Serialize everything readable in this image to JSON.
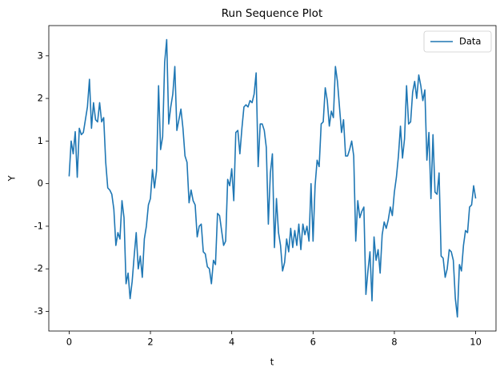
{
  "chart_data": {
    "type": "line",
    "title": "Run Sequence Plot",
    "x_label": "t",
    "y_label": "Y",
    "x": [
      0,
      0.05,
      0.1,
      0.15,
      0.2,
      0.25,
      0.3,
      0.35,
      0.4,
      0.45,
      0.5,
      0.55,
      0.6,
      0.65,
      0.7,
      0.75,
      0.8,
      0.85,
      0.9,
      0.95,
      1,
      1.05,
      1.1,
      1.15,
      1.2,
      1.25,
      1.3,
      1.35,
      1.4,
      1.45,
      1.5,
      1.55,
      1.6,
      1.65,
      1.7,
      1.75,
      1.8,
      1.85,
      1.9,
      1.95,
      2,
      2.05,
      2.1,
      2.15,
      2.2,
      2.25,
      2.3,
      2.35,
      2.4,
      2.45,
      2.5,
      2.55,
      2.6,
      2.65,
      2.7,
      2.75,
      2.8,
      2.85,
      2.9,
      2.95,
      3,
      3.05,
      3.1,
      3.15,
      3.2,
      3.25,
      3.3,
      3.35,
      3.4,
      3.45,
      3.5,
      3.55,
      3.6,
      3.65,
      3.7,
      3.75,
      3.8,
      3.85,
      3.9,
      3.95,
      4,
      4.05,
      4.1,
      4.15,
      4.2,
      4.25,
      4.3,
      4.35,
      4.4,
      4.45,
      4.5,
      4.55,
      4.6,
      4.65,
      4.7,
      4.75,
      4.8,
      4.85,
      4.9,
      4.95,
      5,
      5.05,
      5.1,
      5.15,
      5.2,
      5.25,
      5.3,
      5.35,
      5.4,
      5.45,
      5.5,
      5.55,
      5.6,
      5.65,
      5.7,
      5.75,
      5.8,
      5.85,
      5.9,
      5.95,
      6,
      6.05,
      6.1,
      6.15,
      6.2,
      6.25,
      6.3,
      6.35,
      6.4,
      6.45,
      6.5,
      6.55,
      6.6,
      6.65,
      6.7,
      6.75,
      6.8,
      6.85,
      6.9,
      6.95,
      7,
      7.05,
      7.1,
      7.15,
      7.2,
      7.25,
      7.3,
      7.35,
      7.4,
      7.45,
      7.5,
      7.55,
      7.6,
      7.65,
      7.7,
      7.75,
      7.8,
      7.85,
      7.9,
      7.95,
      8,
      8.05,
      8.1,
      8.15,
      8.2,
      8.25,
      8.3,
      8.35,
      8.4,
      8.45,
      8.5,
      8.55,
      8.6,
      8.65,
      8.7,
      8.75,
      8.8,
      8.85,
      8.9,
      8.95,
      9,
      9.05,
      9.1,
      9.15,
      9.2,
      9.25,
      9.3,
      9.35,
      9.4,
      9.45,
      9.5,
      9.55,
      9.6,
      9.65,
      9.7,
      9.75,
      9.8,
      9.85,
      9.9,
      9.95,
      10
    ],
    "series": [
      {
        "name": "Data",
        "color": "#1f77b4",
        "values": [
          0.17,
          1.0,
          0.7,
          1.22,
          0.15,
          1.3,
          1.15,
          1.2,
          1.5,
          1.8,
          2.45,
          1.3,
          1.9,
          1.5,
          1.45,
          1.9,
          1.45,
          1.55,
          0.5,
          -0.1,
          -0.15,
          -0.25,
          -0.6,
          -1.45,
          -1.15,
          -1.3,
          -0.4,
          -0.8,
          -2.35,
          -2.1,
          -2.7,
          -2.3,
          -1.7,
          -1.15,
          -2.0,
          -1.7,
          -2.2,
          -1.3,
          -1.0,
          -0.5,
          -0.35,
          0.33,
          -0.1,
          0.3,
          2.3,
          0.8,
          1.1,
          2.85,
          3.38,
          1.4,
          1.8,
          2.1,
          2.75,
          1.25,
          1.5,
          1.75,
          1.3,
          0.65,
          0.5,
          -0.45,
          -0.15,
          -0.4,
          -0.5,
          -1.25,
          -1.0,
          -0.95,
          -1.6,
          -1.65,
          -1.95,
          -2.0,
          -2.35,
          -1.8,
          -1.9,
          -0.7,
          -0.75,
          -1.1,
          -1.45,
          -1.35,
          0.1,
          -0.05,
          0.35,
          -0.4,
          1.2,
          1.25,
          0.7,
          1.3,
          1.8,
          1.85,
          1.8,
          1.95,
          1.9,
          2.1,
          2.6,
          0.4,
          1.4,
          1.4,
          1.25,
          0.85,
          -0.95,
          0.25,
          0.7,
          -1.5,
          -0.35,
          -1.15,
          -1.45,
          -2.05,
          -1.85,
          -1.3,
          -1.6,
          -1.05,
          -1.5,
          -1.1,
          -1.45,
          -0.95,
          -1.55,
          -0.95,
          -1.2,
          -1.0,
          -1.35,
          0.0,
          -1.35,
          -0.05,
          0.55,
          0.4,
          1.4,
          1.45,
          2.25,
          1.95,
          1.35,
          1.7,
          1.55,
          2.75,
          2.4,
          1.8,
          1.2,
          1.5,
          0.65,
          0.65,
          0.8,
          1.0,
          0.65,
          -1.35,
          -0.4,
          -0.8,
          -0.65,
          -0.55,
          -2.6,
          -2.05,
          -1.6,
          -2.75,
          -1.25,
          -1.8,
          -1.55,
          -2.1,
          -1.2,
          -0.9,
          -1.05,
          -0.85,
          -0.55,
          -0.75,
          -0.2,
          0.15,
          0.65,
          1.35,
          0.6,
          1.05,
          2.3,
          1.4,
          1.45,
          2.15,
          2.4,
          2.0,
          2.55,
          2.3,
          1.95,
          2.2,
          0.55,
          1.2,
          -0.35,
          1.15,
          -0.2,
          -0.25,
          0.25,
          -1.7,
          -1.75,
          -2.2,
          -2.0,
          -1.55,
          -1.6,
          -1.8,
          -2.7,
          -3.13,
          -1.9,
          -2.05,
          -1.45,
          -1.1,
          -1.15,
          -0.55,
          -0.5,
          -0.05,
          -0.35
        ]
      }
    ],
    "xlim": [
      -0.5,
      10.5
    ],
    "ylim": [
      -3.46,
      3.71
    ],
    "xticks": [
      0,
      2,
      4,
      6,
      8,
      10
    ],
    "yticks": [
      -3,
      -2,
      -1,
      0,
      1,
      2,
      3
    ],
    "grid": false,
    "legend": "upper right"
  }
}
